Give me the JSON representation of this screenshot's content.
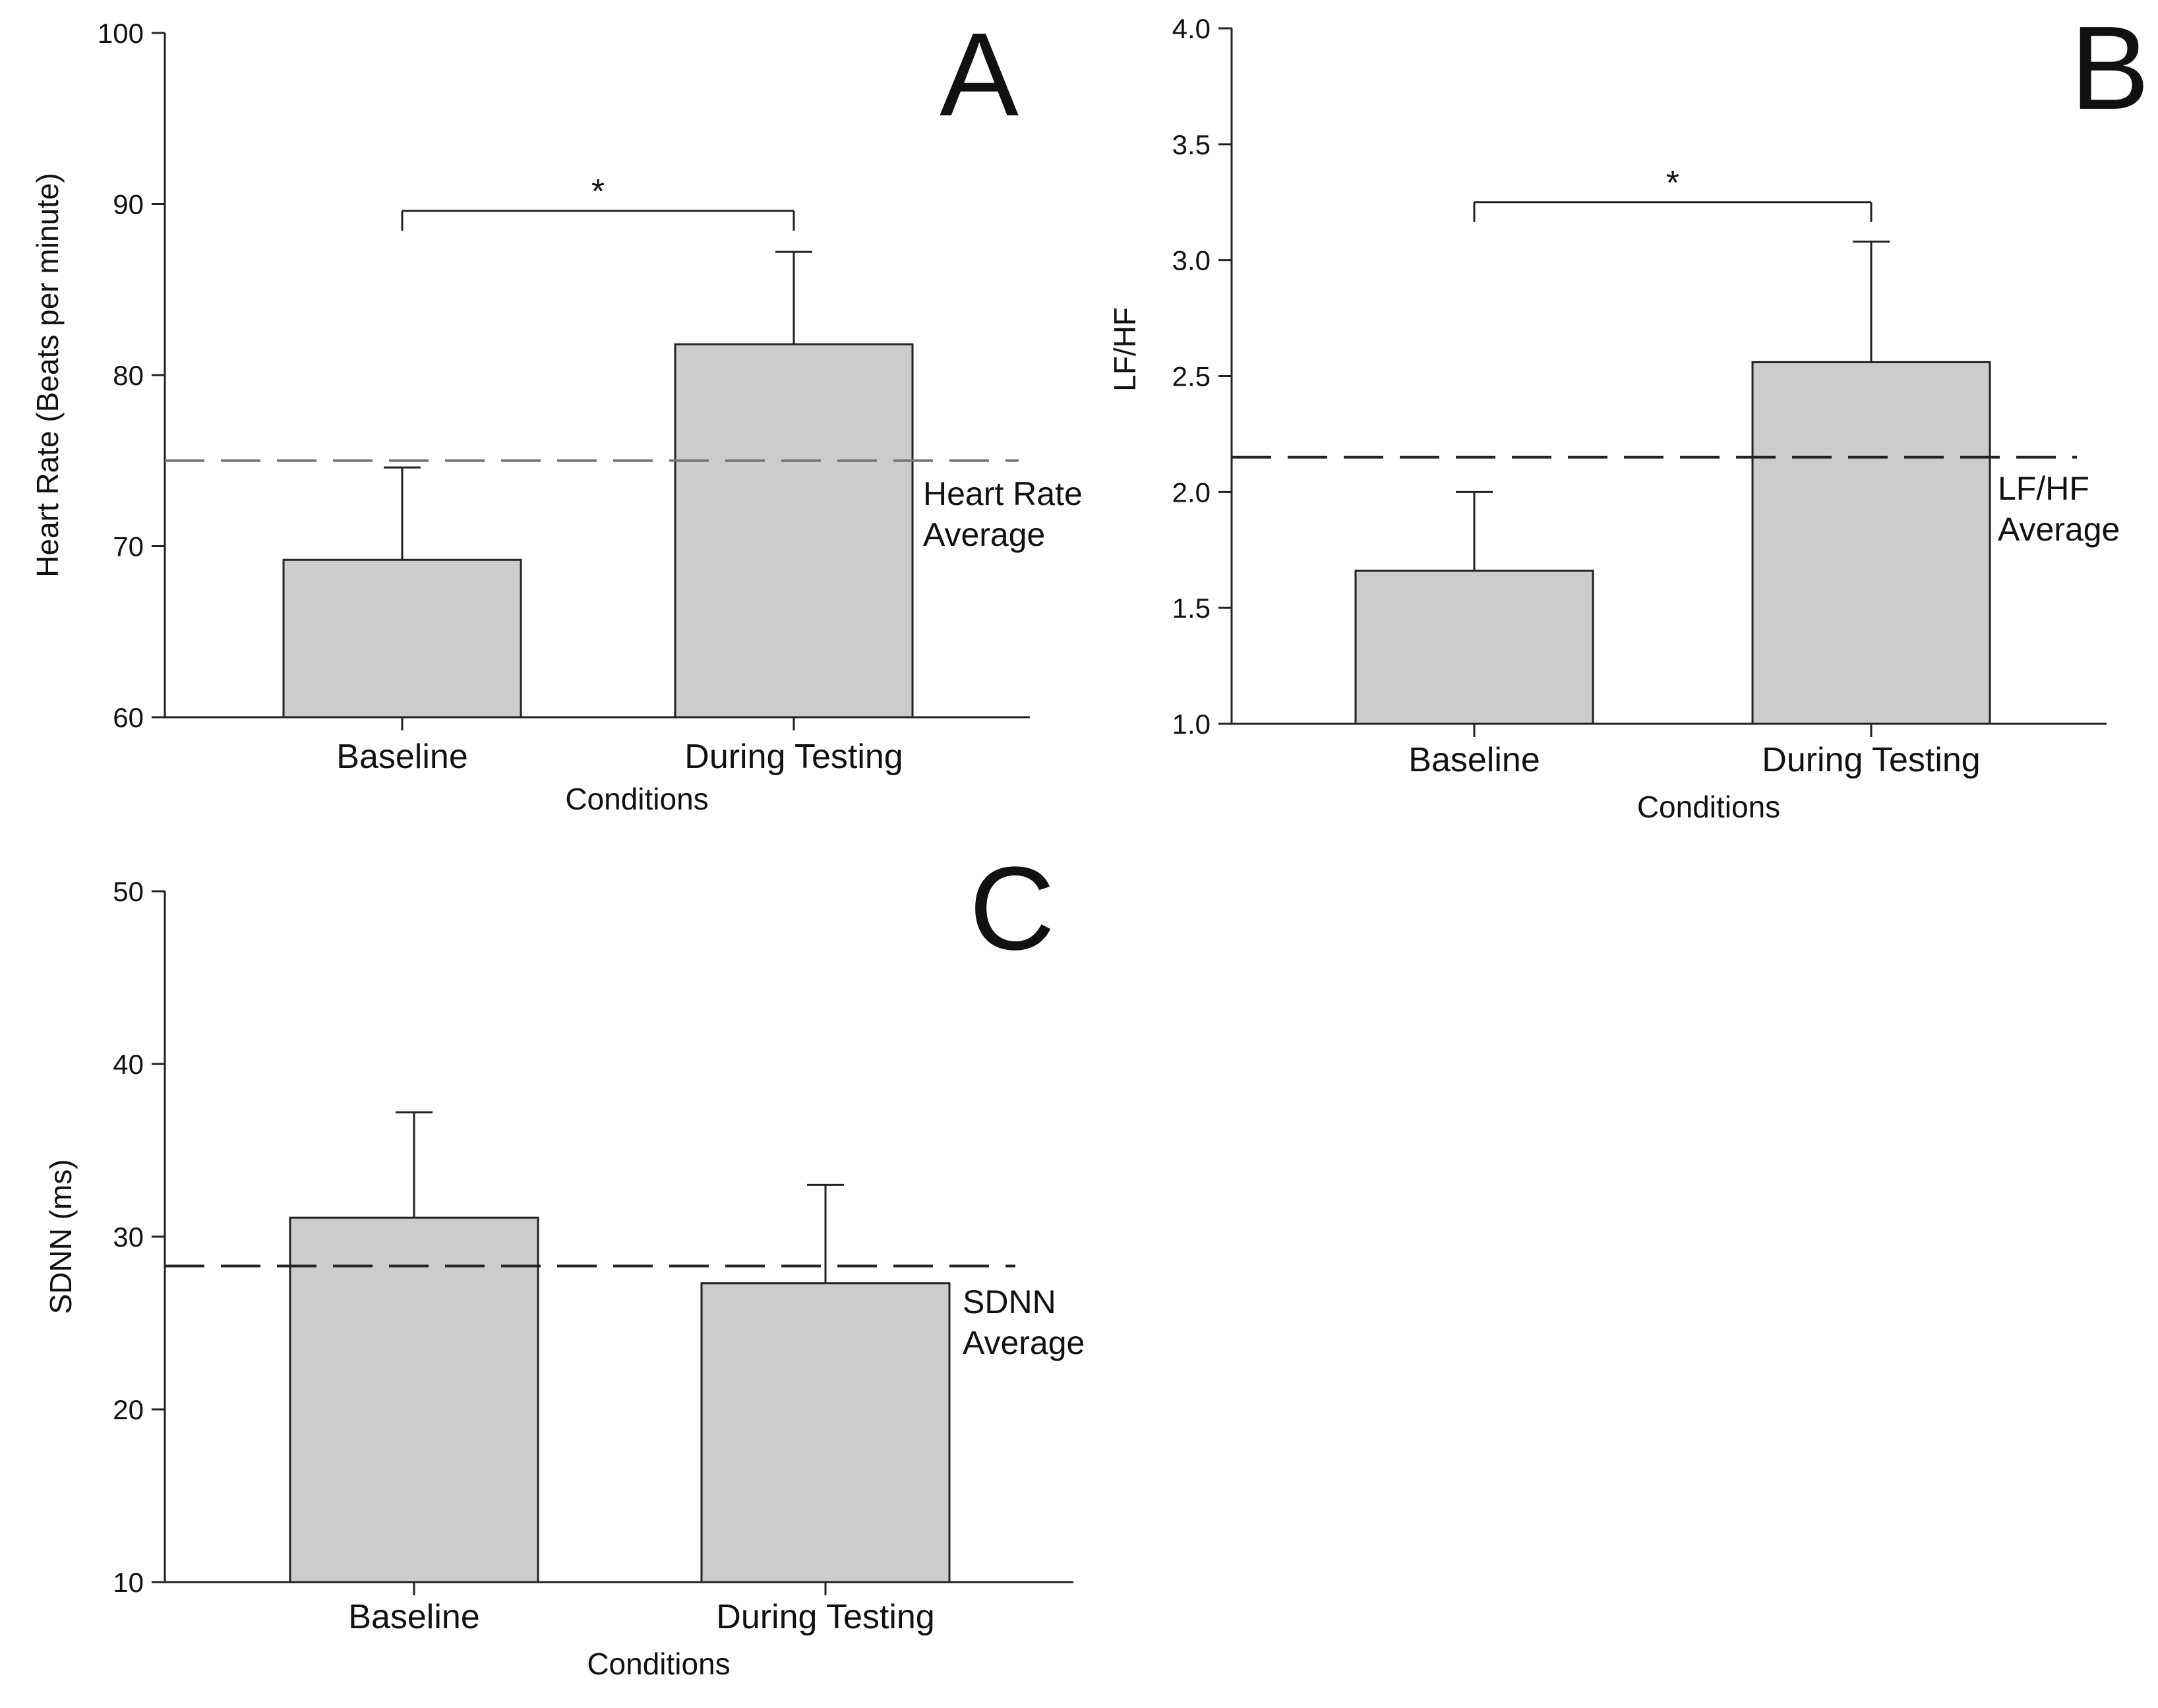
{
  "chart_data": [
    {
      "type": "bar",
      "panel": "A",
      "categories": [
        "Baseline",
        "During Testing"
      ],
      "values": [
        69.2,
        81.8
      ],
      "error_upper": [
        74.6,
        87.2
      ],
      "xlabel": "Conditions",
      "ylabel": "Heart Rate (Beats per minute)",
      "ylim": [
        60,
        100
      ],
      "yticks": [
        60,
        70,
        80,
        90,
        100
      ],
      "ytick_labels": [
        "60",
        "70",
        "80",
        "90",
        "100"
      ],
      "reference_line": {
        "value": 75.0,
        "label_lines": [
          "Heart Rate",
          "Average"
        ]
      },
      "significance": {
        "between": [
          0,
          1
        ],
        "label": "*",
        "level": 89.6
      },
      "colors": {
        "bar_fill": "#cccccc",
        "bar_stroke": "#222222",
        "dash": "#777777"
      }
    },
    {
      "type": "bar",
      "panel": "B",
      "categories": [
        "Baseline",
        "During Testing"
      ],
      "values": [
        1.66,
        2.56
      ],
      "error_upper": [
        2.0,
        3.08
      ],
      "xlabel": "Conditions",
      "ylabel": "LF/HF",
      "ylim": [
        1.0,
        4.0
      ],
      "yticks": [
        1.0,
        1.5,
        2.0,
        2.5,
        3.0,
        3.5,
        4.0
      ],
      "ytick_labels": [
        "1.0",
        "1.5",
        "2.0",
        "2.5",
        "3.0",
        "3.5",
        "4.0"
      ],
      "reference_line": {
        "value": 2.15,
        "label_lines": [
          "LF/HF",
          "Average"
        ]
      },
      "significance": {
        "between": [
          0,
          1
        ],
        "label": "*",
        "level": 3.25
      },
      "colors": {
        "bar_fill": "#cccccc",
        "bar_stroke": "#222222",
        "dash": "#222222"
      }
    },
    {
      "type": "bar",
      "panel": "C",
      "categories": [
        "Baseline",
        "During Testing"
      ],
      "values": [
        31.1,
        27.3
      ],
      "error_upper": [
        37.2,
        33.0
      ],
      "xlabel": "Conditions",
      "ylabel": "SDNN (ms)",
      "ylim": [
        10,
        50
      ],
      "yticks": [
        10,
        20,
        30,
        40,
        50
      ],
      "ytick_labels": [
        "10",
        "20",
        "30",
        "40",
        "50"
      ],
      "reference_line": {
        "value": 28.3,
        "label_lines": [
          "SDNN",
          "Average"
        ]
      },
      "colors": {
        "bar_fill": "#cccccc",
        "bar_stroke": "#222222",
        "dash": "#222222"
      }
    }
  ]
}
